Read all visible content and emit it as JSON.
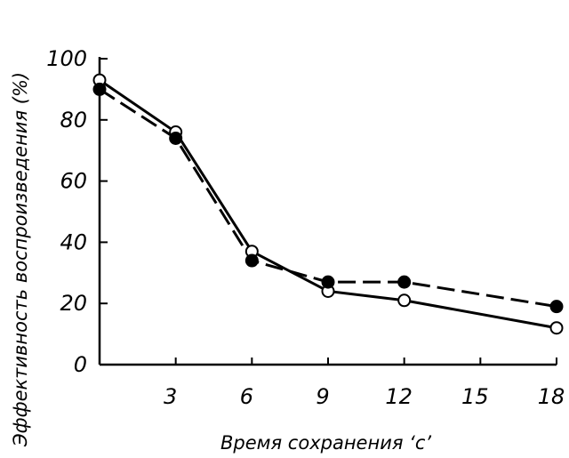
{
  "chart_data": {
    "type": "line",
    "xlabel": "Время сохранения  ‘с’",
    "ylabel": "Эффективность воспроизведения  (%)",
    "xlim": [
      0,
      18
    ],
    "ylim": [
      0,
      100
    ],
    "x_ticks": [
      3,
      6,
      9,
      12,
      15,
      18
    ],
    "y_ticks": [
      0,
      20,
      40,
      60,
      80,
      100
    ],
    "grid": false,
    "series": [
      {
        "style": "solid",
        "marker": "open-circle",
        "points": [
          {
            "x": 0,
            "y": 93
          },
          {
            "x": 3,
            "y": 76
          },
          {
            "x": 6,
            "y": 37
          },
          {
            "x": 9,
            "y": 24
          },
          {
            "x": 12,
            "y": 21
          },
          {
            "x": 18,
            "y": 12
          }
        ]
      },
      {
        "style": "dashed",
        "marker": "filled-circle",
        "points": [
          {
            "x": 0,
            "y": 90
          },
          {
            "x": 3,
            "y": 74
          },
          {
            "x": 6,
            "y": 34
          },
          {
            "x": 9,
            "y": 27
          },
          {
            "x": 12,
            "y": 27
          },
          {
            "x": 18,
            "y": 19
          }
        ]
      }
    ]
  }
}
